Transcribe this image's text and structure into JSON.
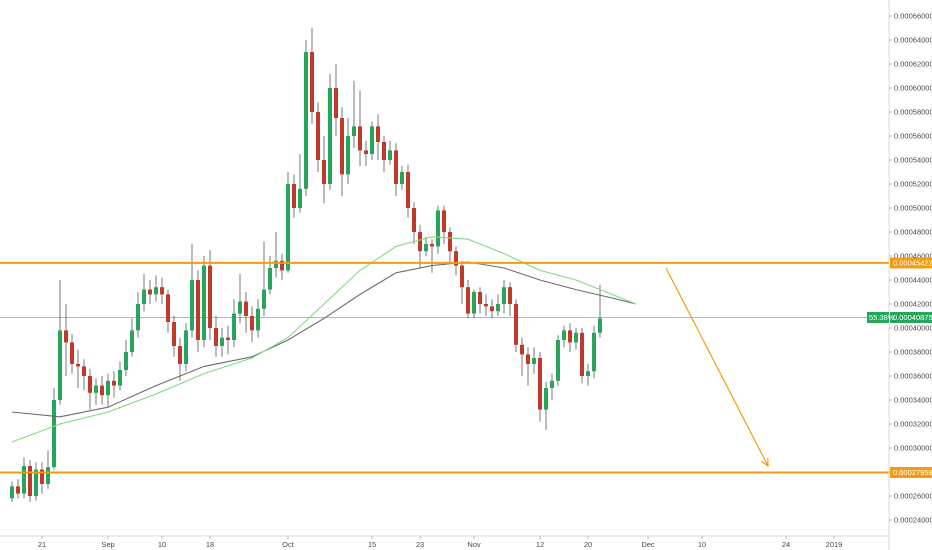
{
  "colors": {
    "background": "#ffffff",
    "up": "#26a65b",
    "down": "#c0392b",
    "wick": "#555555",
    "ma_fast": "#7ddc7d",
    "ma_slow": "#6e6e6e",
    "level": "#f39c12",
    "price_line": "#8fd19e",
    "price_tag": "#26a65b",
    "axis_text": "#4a4a4a"
  },
  "axes": {
    "y_ticks": [
      "0.00024000",
      "0.00026000",
      "0.00028000",
      "0.00030000",
      "0.00032000",
      "0.00034000",
      "0.00036000",
      "0.00038000",
      "0.00040000",
      "0.00042000",
      "0.00044000",
      "0.00046000",
      "0.00048000",
      "0.00050000",
      "0.00052000",
      "0.00054000",
      "0.00056000",
      "0.00058000",
      "0.00060000",
      "0.00062000",
      "0.00064000",
      "0.00066000"
    ],
    "x_ticks": [
      "21",
      "Sep",
      "10",
      "18",
      "Oct",
      "15",
      "23",
      "Nov",
      "12",
      "20",
      "Dec",
      "10",
      "24",
      "2019"
    ]
  },
  "price_tags": {
    "resistance": "0.00045422",
    "current": "0.00040875",
    "current_pct": "55.38%",
    "support": "0.00027958"
  },
  "chart_data": {
    "type": "candlestick",
    "y_range": [
      0.00023,
      0.00067
    ],
    "y_ticks": [
      0.00024,
      0.00026,
      0.00028,
      0.0003,
      0.00032,
      0.00034,
      0.00036,
      0.00038,
      0.0004,
      0.00042,
      0.00044,
      0.00046,
      0.00048,
      0.0005,
      0.00052,
      0.00054,
      0.00056,
      0.00058,
      0.0006,
      0.00062,
      0.00064,
      0.00066
    ],
    "x_ticks": [
      {
        "label": "21",
        "i": 5
      },
      {
        "label": "Sep",
        "i": 16
      },
      {
        "label": "10",
        "i": 25
      },
      {
        "label": "18",
        "i": 33
      },
      {
        "label": "Oct",
        "i": 46
      },
      {
        "label": "15",
        "i": 60
      },
      {
        "label": "23",
        "i": 68
      },
      {
        "label": "Nov",
        "i": 77
      },
      {
        "label": "12",
        "i": 88
      },
      {
        "label": "20",
        "i": 96
      },
      {
        "label": "Dec",
        "i": 106
      },
      {
        "label": "10",
        "i": 115
      },
      {
        "label": "24",
        "i": 129
      },
      {
        "label": "2019",
        "i": 137
      }
    ],
    "candles": [
      [
        0.000258,
        0.000268,
        0.000255,
        0.000272
      ],
      [
        0.000268,
        0.000262,
        0.000258,
        0.000274
      ],
      [
        0.000262,
        0.000285,
        0.000258,
        0.000292
      ],
      [
        0.000285,
        0.00026,
        0.000255,
        0.00029
      ],
      [
        0.00026,
        0.000282,
        0.000256,
        0.000288
      ],
      [
        0.000282,
        0.00027,
        0.000262,
        0.000288
      ],
      [
        0.00027,
        0.000284,
        0.000266,
        0.000298
      ],
      [
        0.000284,
        0.00034,
        0.000282,
        0.00035
      ],
      [
        0.00034,
        0.000398,
        0.000336,
        0.00044
      ],
      [
        0.000398,
        0.000388,
        0.00036,
        0.00042
      ],
      [
        0.000388,
        0.00037,
        0.000362,
        0.000395
      ],
      [
        0.00037,
        0.000368,
        0.00035,
        0.000382
      ],
      [
        0.000368,
        0.00036,
        0.000348,
        0.000374
      ],
      [
        0.00036,
        0.000346,
        0.000332,
        0.000366
      ],
      [
        0.000346,
        0.000352,
        0.000336,
        0.000358
      ],
      [
        0.000352,
        0.000344,
        0.000336,
        0.00036
      ],
      [
        0.000344,
        0.000356,
        0.000334,
        0.000362
      ],
      [
        0.000356,
        0.000352,
        0.000342,
        0.000364
      ],
      [
        0.000352,
        0.000365,
        0.000348,
        0.000372
      ],
      [
        0.000365,
        0.00038,
        0.00036,
        0.00039
      ],
      [
        0.00038,
        0.000398,
        0.000376,
        0.000408
      ],
      [
        0.000398,
        0.00042,
        0.000392,
        0.00043
      ],
      [
        0.00042,
        0.000432,
        0.000414,
        0.000445
      ],
      [
        0.000432,
        0.000428,
        0.00042,
        0.00044
      ],
      [
        0.000428,
        0.000434,
        0.000422,
        0.000444
      ],
      [
        0.000434,
        0.000428,
        0.00042,
        0.000442
      ],
      [
        0.000428,
        0.000405,
        0.000396,
        0.000432
      ],
      [
        0.000405,
        0.000385,
        0.000376,
        0.00041
      ],
      [
        0.000385,
        0.00037,
        0.000356,
        0.000392
      ],
      [
        0.00037,
        0.000398,
        0.000364,
        0.000404
      ],
      [
        0.000398,
        0.00044,
        0.000392,
        0.00047
      ],
      [
        0.00044,
        0.00039,
        0.00038,
        0.000448
      ],
      [
        0.00039,
        0.000452,
        0.000384,
        0.00046
      ],
      [
        0.000452,
        0.0004,
        0.00039,
        0.000465
      ],
      [
        0.0004,
        0.000385,
        0.000376,
        0.00041
      ],
      [
        0.000385,
        0.000392,
        0.000376,
        0.0004
      ],
      [
        0.000392,
        0.00039,
        0.000378,
        0.000402
      ],
      [
        0.00039,
        0.000412,
        0.000384,
        0.000424
      ],
      [
        0.000412,
        0.000422,
        0.000404,
        0.000445
      ],
      [
        0.000422,
        0.00041,
        0.000396,
        0.00043
      ],
      [
        0.00041,
        0.000398,
        0.000388,
        0.000418
      ],
      [
        0.000398,
        0.000416,
        0.000392,
        0.000424
      ],
      [
        0.000416,
        0.000432,
        0.00041,
        0.000472
      ],
      [
        0.000432,
        0.00045,
        0.000428,
        0.00046
      ],
      [
        0.00045,
        0.000456,
        0.000442,
        0.00048
      ],
      [
        0.000456,
        0.000448,
        0.00044,
        0.000462
      ],
      [
        0.000448,
        0.00052,
        0.000446,
        0.00053
      ],
      [
        0.00052,
        0.0005,
        0.000492,
        0.000528
      ],
      [
        0.0005,
        0.000516,
        0.000496,
        0.000545
      ],
      [
        0.000516,
        0.00063,
        0.00051,
        0.00064
      ],
      [
        0.00063,
        0.00058,
        0.00057,
        0.00065
      ],
      [
        0.00058,
        0.00054,
        0.00053,
        0.000588
      ],
      [
        0.00054,
        0.00052,
        0.000504,
        0.00056
      ],
      [
        0.00052,
        0.0006,
        0.000515,
        0.000612
      ],
      [
        0.0006,
        0.000575,
        0.00056,
        0.00062
      ],
      [
        0.000575,
        0.000528,
        0.00051,
        0.000584
      ],
      [
        0.000528,
        0.00056,
        0.00052,
        0.000575
      ],
      [
        0.00056,
        0.000568,
        0.00055,
        0.000606
      ],
      [
        0.000568,
        0.000548,
        0.000535,
        0.000598
      ],
      [
        0.000548,
        0.000545,
        0.000535,
        0.000556
      ],
      [
        0.000545,
        0.000568,
        0.00054,
        0.000572
      ],
      [
        0.000568,
        0.000555,
        0.00054,
        0.000578
      ],
      [
        0.000555,
        0.00054,
        0.00053,
        0.00056
      ],
      [
        0.00054,
        0.000548,
        0.000536,
        0.000556
      ],
      [
        0.000548,
        0.00052,
        0.00051,
        0.000554
      ],
      [
        0.00052,
        0.00053,
        0.000515,
        0.000535
      ],
      [
        0.00053,
        0.0005,
        0.000492,
        0.000536
      ],
      [
        0.0005,
        0.00048,
        0.00047,
        0.000505
      ],
      [
        0.00048,
        0.000464,
        0.00045,
        0.000486
      ],
      [
        0.000464,
        0.00047,
        0.00046,
        0.000476
      ],
      [
        0.00047,
        0.000468,
        0.000446,
        0.000474
      ],
      [
        0.000468,
        0.000498,
        0.000462,
        0.000502
      ],
      [
        0.000498,
        0.00048,
        0.00047,
        0.000502
      ],
      [
        0.00048,
        0.000464,
        0.000455,
        0.000484
      ],
      [
        0.000464,
        0.000452,
        0.000444,
        0.000468
      ],
      [
        0.000452,
        0.000434,
        0.00042,
        0.000456
      ],
      [
        0.000434,
        0.000412,
        0.000408,
        0.00044
      ],
      [
        0.000412,
        0.00043,
        0.000408,
        0.000432
      ],
      [
        0.00043,
        0.00042,
        0.000412,
        0.000434
      ],
      [
        0.00042,
        0.000418,
        0.00041,
        0.000428
      ],
      [
        0.000418,
        0.000414,
        0.000408,
        0.000424
      ],
      [
        0.000414,
        0.00042,
        0.00041,
        0.000428
      ],
      [
        0.00042,
        0.000434,
        0.000412,
        0.00044
      ],
      [
        0.000434,
        0.00042,
        0.00041,
        0.000438
      ],
      [
        0.00042,
        0.000386,
        0.00038,
        0.000424
      ],
      [
        0.000386,
        0.000378,
        0.00036,
        0.000392
      ],
      [
        0.000378,
        0.00037,
        0.000352,
        0.000384
      ],
      [
        0.00037,
        0.000375,
        0.000362,
        0.000384
      ],
      [
        0.000375,
        0.000332,
        0.000322,
        0.00038
      ],
      [
        0.000332,
        0.00035,
        0.000315,
        0.000355
      ],
      [
        0.00035,
        0.000356,
        0.00034,
        0.000362
      ],
      [
        0.000356,
        0.00039,
        0.000352,
        0.000394
      ],
      [
        0.00039,
        0.000398,
        0.000384,
        0.000402
      ],
      [
        0.000398,
        0.000388,
        0.00038,
        0.000404
      ],
      [
        0.000388,
        0.000396,
        0.000382,
        0.0004
      ],
      [
        0.000396,
        0.00036,
        0.000354,
        0.0004
      ],
      [
        0.00036,
        0.000364,
        0.000352,
        0.00037
      ],
      [
        0.000364,
        0.000396,
        0.000358,
        0.000402
      ],
      [
        0.000396,
        0.000408,
        0.000392,
        0.000436
      ]
    ],
    "ma_fast": [
      [
        0,
        0.000305
      ],
      [
        8,
        0.00032
      ],
      [
        16,
        0.00033
      ],
      [
        24,
        0.000345
      ],
      [
        32,
        0.000362
      ],
      [
        40,
        0.000375
      ],
      [
        46,
        0.000392
      ],
      [
        52,
        0.00042
      ],
      [
        58,
        0.000448
      ],
      [
        64,
        0.000468
      ],
      [
        70,
        0.000476
      ],
      [
        76,
        0.000474
      ],
      [
        82,
        0.000462
      ],
      [
        88,
        0.000448
      ],
      [
        94,
        0.00044
      ],
      [
        100,
        0.000428
      ],
      [
        104,
        0.00042
      ]
    ],
    "ma_slow": [
      [
        0,
        0.00033
      ],
      [
        8,
        0.000326
      ],
      [
        16,
        0.000334
      ],
      [
        24,
        0.000352
      ],
      [
        32,
        0.000368
      ],
      [
        40,
        0.000376
      ],
      [
        46,
        0.00039
      ],
      [
        52,
        0.000408
      ],
      [
        58,
        0.000428
      ],
      [
        64,
        0.000446
      ],
      [
        70,
        0.000452
      ],
      [
        76,
        0.000455
      ],
      [
        82,
        0.00045
      ],
      [
        88,
        0.00044
      ],
      [
        94,
        0.000432
      ],
      [
        100,
        0.000425
      ],
      [
        104,
        0.00042
      ]
    ],
    "resistance": 0.00045422,
    "support": 0.00027958,
    "current_price": 0.00040875,
    "projection": {
      "from": [
        109,
        0.00045
      ],
      "to": [
        126,
        0.000285
      ]
    }
  }
}
